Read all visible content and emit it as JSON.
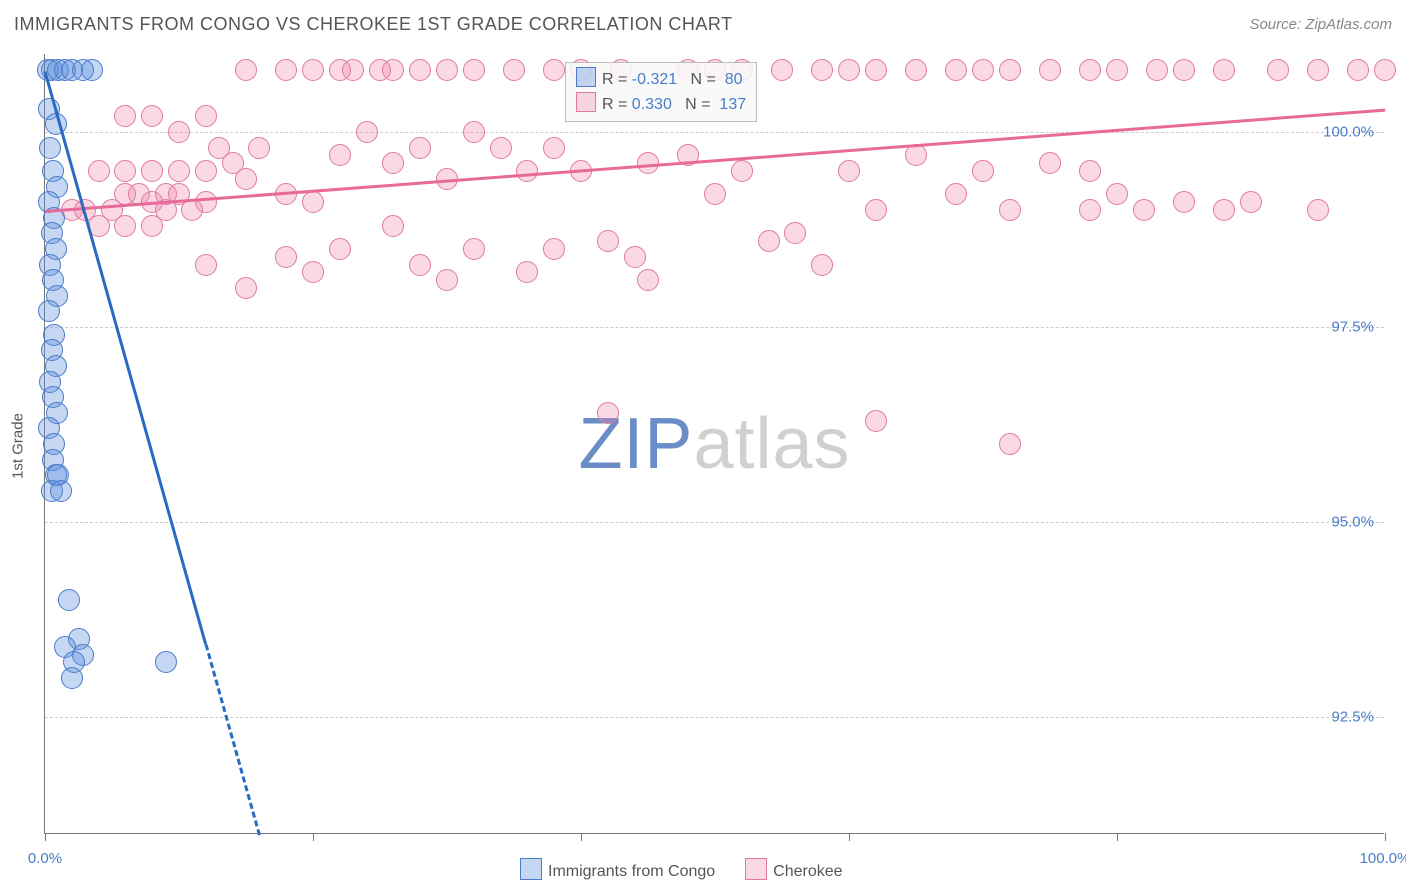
{
  "title": "IMMIGRANTS FROM CONGO VS CHEROKEE 1ST GRADE CORRELATION CHART",
  "source": "Source: ZipAtlas.com",
  "ylabel": "1st Grade",
  "watermark_strong": "ZIP",
  "watermark_light": "atlas",
  "watermark_strong_color": "#6a8dc8",
  "watermark_light_color": "#d0d0d0",
  "colors": {
    "series_a_fill": "rgba(90,140,220,0.35)",
    "series_a_stroke": "#4a7cc8",
    "series_b_fill": "rgba(240,130,170,0.30)",
    "series_b_stroke": "#e07aa0",
    "trend_a": "#2a6ac2",
    "trend_b": "#e86a9a",
    "tick_text": "#4a7cc8",
    "grid": "#cccccc",
    "axis": "#777777"
  },
  "chart": {
    "type": "scatter",
    "xlim": [
      0,
      100
    ],
    "ylim": [
      91,
      101
    ],
    "xtick_positions": [
      0,
      20,
      40,
      60,
      80,
      100
    ],
    "xtick_labels": {
      "0": "0.0%",
      "100": "100.0%"
    },
    "ytick_positions": [
      92.5,
      95.0,
      97.5,
      100.0
    ],
    "ytick_labels": [
      "92.5%",
      "95.0%",
      "97.5%",
      "100.0%"
    ],
    "marker_radius": 11,
    "marker_stroke_width": 1.5,
    "trend_width": 3
  },
  "legend_top": {
    "rows": [
      {
        "swatch_fill": "rgba(90,140,220,0.35)",
        "swatch_stroke": "#4a7cc8",
        "prefix": "R = ",
        "r": "-0.321",
        "n_prefix": "   N =  ",
        "n": "80"
      },
      {
        "swatch_fill": "rgba(240,130,170,0.30)",
        "swatch_stroke": "#e07aa0",
        "prefix": "R = ",
        "r": "0.330",
        "n_prefix": "   N =  ",
        "n": "137"
      }
    ]
  },
  "legend_bottom": {
    "items": [
      {
        "swatch_fill": "rgba(90,140,220,0.35)",
        "swatch_stroke": "#4a7cc8",
        "label": "Immigrants from Congo"
      },
      {
        "swatch_fill": "rgba(240,130,170,0.30)",
        "swatch_stroke": "#e07aa0",
        "label": "Cherokee"
      }
    ]
  },
  "trend_lines": {
    "a": {
      "x1": 0,
      "y1": 100.8,
      "x2": 16,
      "y2": 91.0,
      "solid_until_x": 12
    },
    "b": {
      "x1": 0,
      "y1": 99.0,
      "x2": 100,
      "y2": 100.3
    }
  },
  "series_a": [
    [
      0.2,
      100.8
    ],
    [
      0.5,
      100.8
    ],
    [
      1.0,
      100.8
    ],
    [
      1.5,
      100.8
    ],
    [
      2.0,
      100.8
    ],
    [
      2.8,
      100.8
    ],
    [
      3.5,
      100.8
    ],
    [
      0.3,
      100.3
    ],
    [
      0.8,
      100.1
    ],
    [
      0.4,
      99.8
    ],
    [
      0.6,
      99.5
    ],
    [
      0.9,
      99.3
    ],
    [
      0.3,
      99.1
    ],
    [
      0.7,
      98.9
    ],
    [
      0.5,
      98.7
    ],
    [
      0.8,
      98.5
    ],
    [
      0.4,
      98.3
    ],
    [
      0.6,
      98.1
    ],
    [
      0.9,
      97.9
    ],
    [
      0.3,
      97.7
    ],
    [
      0.7,
      97.4
    ],
    [
      0.5,
      97.2
    ],
    [
      0.8,
      97.0
    ],
    [
      0.4,
      96.8
    ],
    [
      0.6,
      96.6
    ],
    [
      0.9,
      96.4
    ],
    [
      0.3,
      96.2
    ],
    [
      0.7,
      96.0
    ],
    [
      0.6,
      95.8
    ],
    [
      0.8,
      95.6
    ],
    [
      1.0,
      95.6
    ],
    [
      0.5,
      95.4
    ],
    [
      1.2,
      95.4
    ],
    [
      1.8,
      94.0
    ],
    [
      2.5,
      93.5
    ],
    [
      1.5,
      93.4
    ],
    [
      2.8,
      93.3
    ],
    [
      2.2,
      93.2
    ],
    [
      9.0,
      93.2
    ],
    [
      2.0,
      93.0
    ]
  ],
  "series_b": [
    [
      2,
      99.0
    ],
    [
      3,
      99.0
    ],
    [
      4,
      98.8
    ],
    [
      5,
      99.0
    ],
    [
      6,
      98.8
    ],
    [
      6,
      99.2
    ],
    [
      7,
      99.2
    ],
    [
      8,
      98.8
    ],
    [
      8,
      99.1
    ],
    [
      9,
      99.0
    ],
    [
      9,
      99.2
    ],
    [
      10,
      99.2
    ],
    [
      11,
      99.0
    ],
    [
      12,
      99.1
    ],
    [
      4,
      99.5
    ],
    [
      6,
      99.5
    ],
    [
      8,
      99.5
    ],
    [
      10,
      99.5
    ],
    [
      12,
      99.5
    ],
    [
      6,
      100.2
    ],
    [
      8,
      100.2
    ],
    [
      10,
      100.0
    ],
    [
      12,
      100.2
    ],
    [
      13,
      99.8
    ],
    [
      14,
      99.6
    ],
    [
      15,
      99.4
    ],
    [
      16,
      99.8
    ],
    [
      18,
      99.2
    ],
    [
      20,
      99.1
    ],
    [
      12,
      98.3
    ],
    [
      15,
      98.0
    ],
    [
      18,
      98.4
    ],
    [
      20,
      98.2
    ],
    [
      15,
      100.8
    ],
    [
      18,
      100.8
    ],
    [
      20,
      100.8
    ],
    [
      22,
      100.8
    ],
    [
      23,
      100.8
    ],
    [
      25,
      100.8
    ],
    [
      26,
      100.8
    ],
    [
      28,
      100.8
    ],
    [
      30,
      100.8
    ],
    [
      32,
      100.8
    ],
    [
      35,
      100.8
    ],
    [
      38,
      100.8
    ],
    [
      40,
      100.8
    ],
    [
      43,
      100.8
    ],
    [
      22,
      99.7
    ],
    [
      24,
      100.0
    ],
    [
      26,
      99.6
    ],
    [
      28,
      99.8
    ],
    [
      30,
      99.4
    ],
    [
      32,
      100.0
    ],
    [
      22,
      98.5
    ],
    [
      26,
      98.8
    ],
    [
      28,
      98.3
    ],
    [
      30,
      98.1
    ],
    [
      32,
      98.5
    ],
    [
      34,
      99.8
    ],
    [
      36,
      99.5
    ],
    [
      38,
      99.8
    ],
    [
      40,
      99.5
    ],
    [
      42,
      98.6
    ],
    [
      44,
      98.4
    ],
    [
      36,
      98.2
    ],
    [
      38,
      98.5
    ],
    [
      45,
      99.6
    ],
    [
      48,
      100.8
    ],
    [
      50,
      100.8
    ],
    [
      52,
      100.8
    ],
    [
      55,
      100.8
    ],
    [
      48,
      99.7
    ],
    [
      50,
      99.2
    ],
    [
      52,
      99.5
    ],
    [
      54,
      98.6
    ],
    [
      56,
      98.7
    ],
    [
      58,
      98.3
    ],
    [
      60,
      99.5
    ],
    [
      62,
      99.0
    ],
    [
      45,
      98.1
    ],
    [
      58,
      100.8
    ],
    [
      60,
      100.8
    ],
    [
      62,
      100.8
    ],
    [
      65,
      100.8
    ],
    [
      68,
      100.8
    ],
    [
      70,
      100.8
    ],
    [
      72,
      100.8
    ],
    [
      75,
      100.8
    ],
    [
      78,
      100.8
    ],
    [
      80,
      100.8
    ],
    [
      83,
      100.8
    ],
    [
      85,
      100.8
    ],
    [
      88,
      100.8
    ],
    [
      92,
      100.8
    ],
    [
      95,
      100.8
    ],
    [
      98,
      100.8
    ],
    [
      100,
      100.8
    ],
    [
      65,
      99.7
    ],
    [
      68,
      99.2
    ],
    [
      70,
      99.5
    ],
    [
      72,
      99.0
    ],
    [
      75,
      99.6
    ],
    [
      78,
      99.0
    ],
    [
      80,
      99.2
    ],
    [
      82,
      99.0
    ],
    [
      85,
      99.1
    ],
    [
      88,
      99.0
    ],
    [
      90,
      99.1
    ],
    [
      95,
      99.0
    ],
    [
      78,
      99.5
    ],
    [
      42,
      96.4
    ],
    [
      62,
      96.3
    ],
    [
      72,
      96.0
    ]
  ]
}
